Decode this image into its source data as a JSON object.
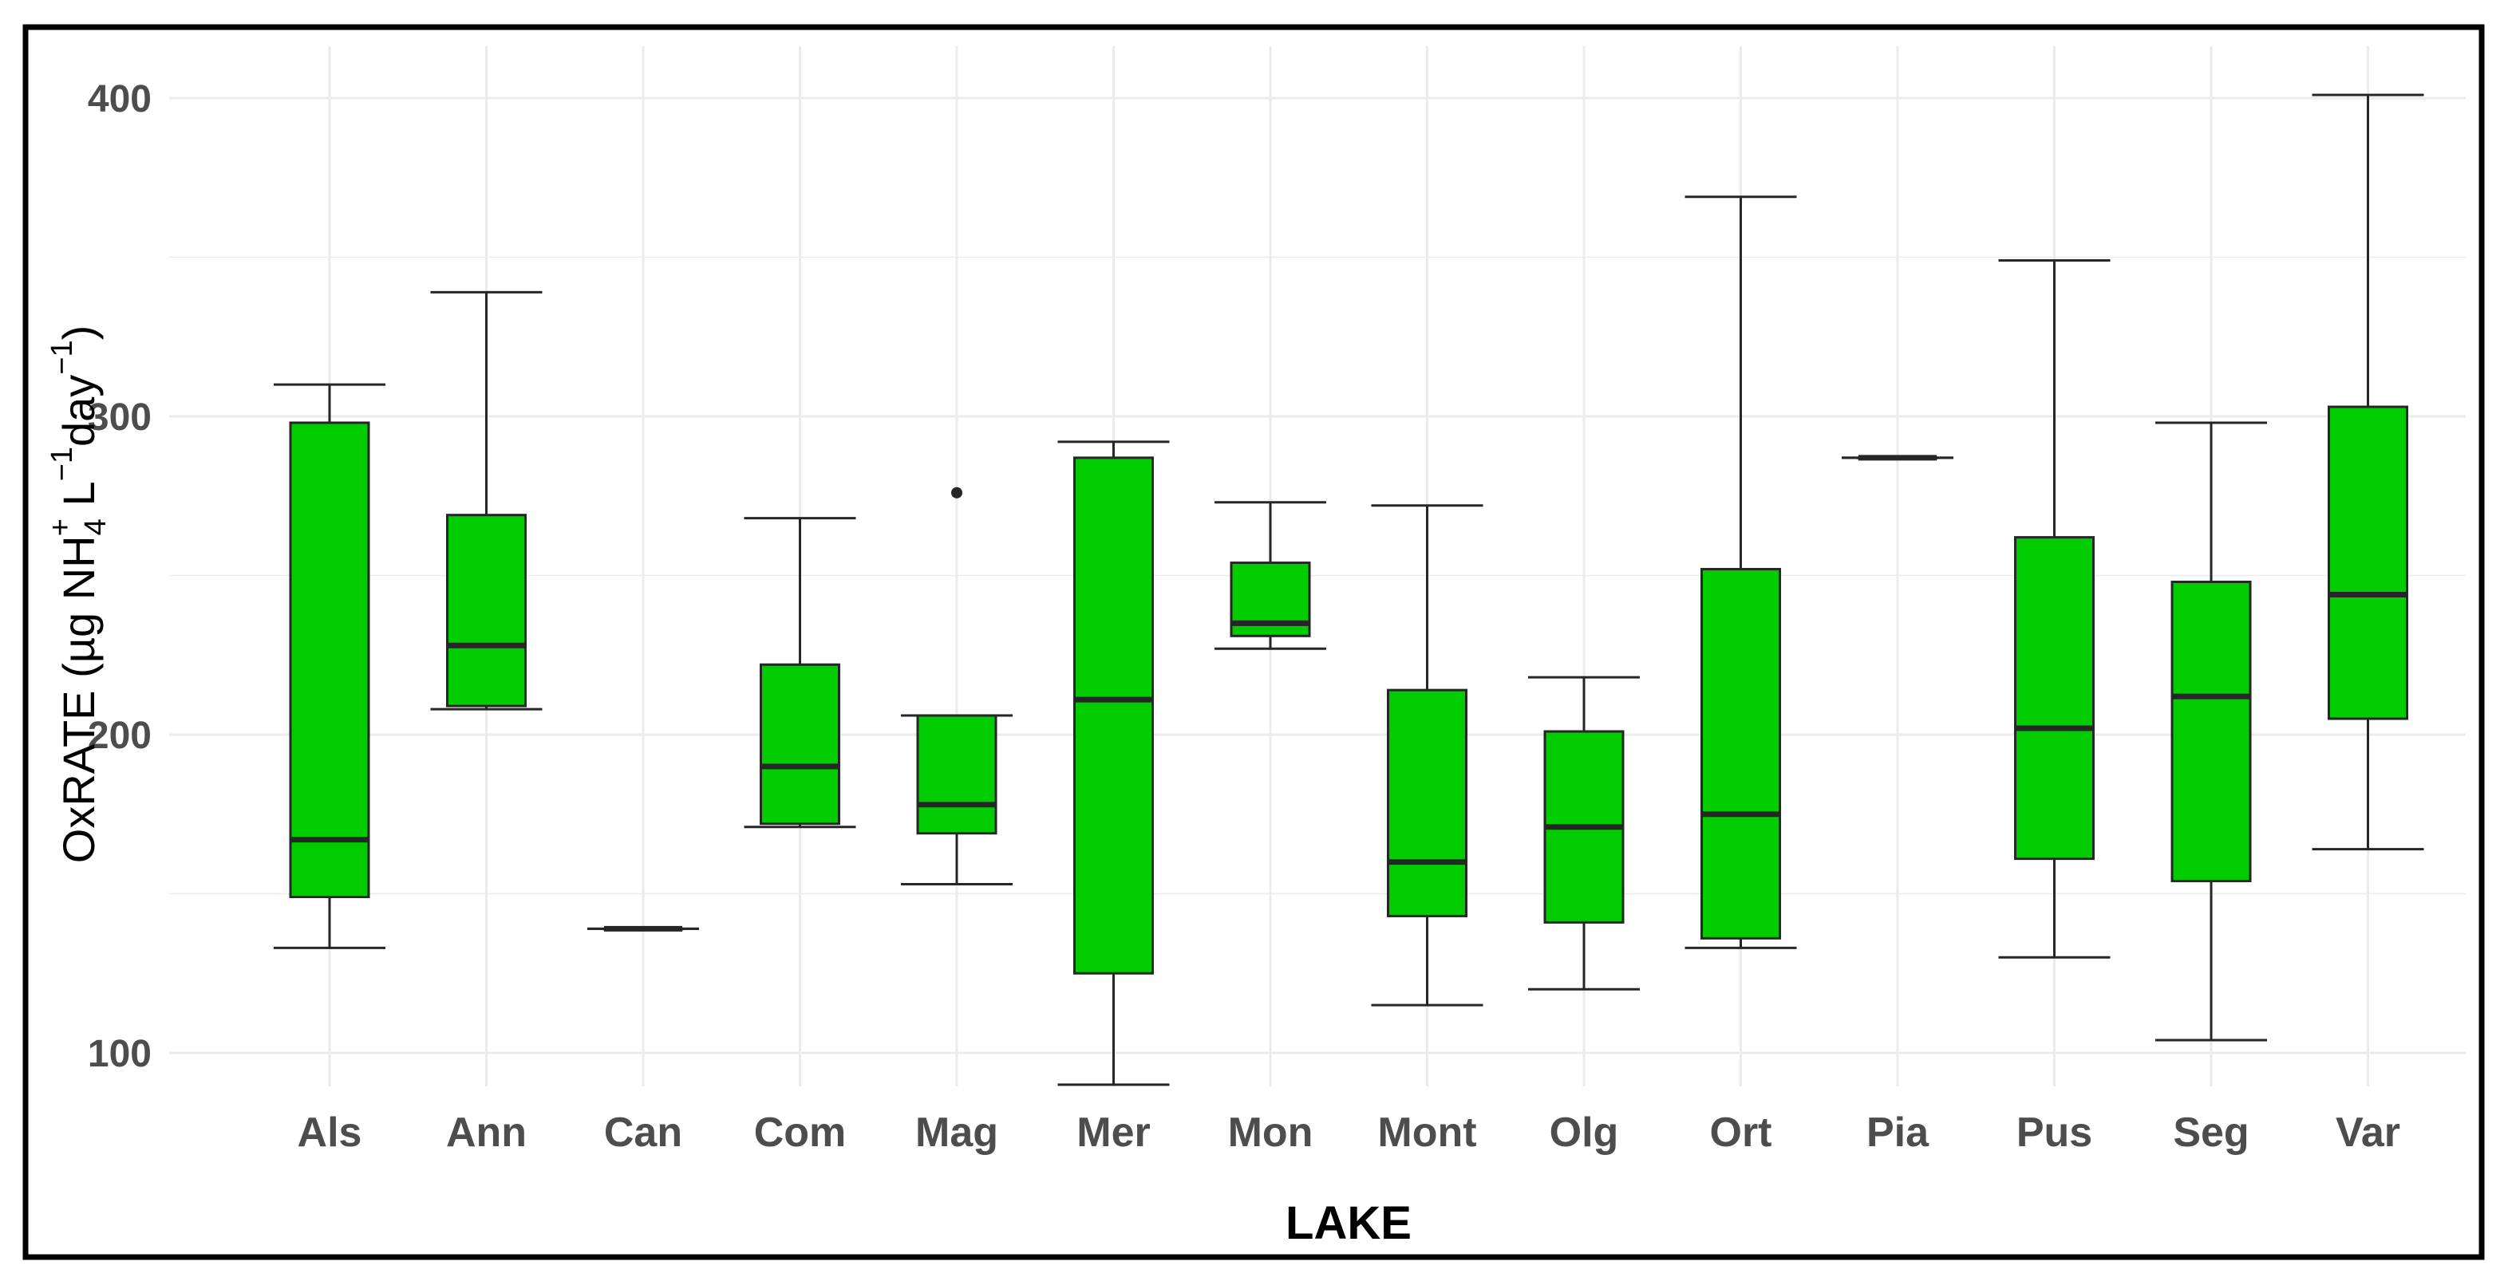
{
  "chart_data": {
    "type": "boxplot",
    "xlabel": "LAKE",
    "ylabel": {
      "prefix": "OxRATE (µg NH",
      "sub": "4",
      "sup": "+",
      "mid": " L",
      "sup2": "−1",
      "mid2": "day",
      "sup3": "−1",
      "suffix": ")"
    },
    "ylim": [
      80,
      420
    ],
    "yticks": [
      100,
      200,
      300,
      400
    ],
    "grid": true,
    "colors": {
      "box_fill": "#00cc00",
      "stroke": "#262626",
      "grid": "#ebebeb",
      "frame": "#000000"
    },
    "categories": [
      "Als",
      "Ann",
      "Can",
      "Com",
      "Mag",
      "Mer",
      "Mon",
      "Mont",
      "Olg",
      "Ort",
      "Pia",
      "Pus",
      "Seg",
      "Var"
    ],
    "boxes": [
      {
        "lake": "Als",
        "min": 133,
        "q1": 149,
        "median": 167,
        "q3": 298,
        "max": 310,
        "outliers": []
      },
      {
        "lake": "Ann",
        "min": 208,
        "q1": 209,
        "median": 228,
        "q3": 269,
        "max": 339,
        "outliers": []
      },
      {
        "lake": "Can",
        "min": 139,
        "q1": 139,
        "median": 139,
        "q3": 139,
        "max": 139,
        "outliers": []
      },
      {
        "lake": "Com",
        "min": 171,
        "q1": 172,
        "median": 190,
        "q3": 222,
        "max": 268,
        "outliers": []
      },
      {
        "lake": "Mag",
        "min": 153,
        "q1": 169,
        "median": 178,
        "q3": 206,
        "max": 206,
        "outliers": [
          276
        ]
      },
      {
        "lake": "Mer",
        "min": 90,
        "q1": 125,
        "median": 211,
        "q3": 287,
        "max": 292,
        "outliers": []
      },
      {
        "lake": "Mon",
        "min": 227,
        "q1": 231,
        "median": 235,
        "q3": 254,
        "max": 273,
        "outliers": []
      },
      {
        "lake": "Mont",
        "min": 115,
        "q1": 143,
        "median": 160,
        "q3": 214,
        "max": 272,
        "outliers": []
      },
      {
        "lake": "Olg",
        "min": 120,
        "q1": 141,
        "median": 171,
        "q3": 201,
        "max": 218,
        "outliers": []
      },
      {
        "lake": "Ort",
        "min": 133,
        "q1": 136,
        "median": 175,
        "q3": 252,
        "max": 369,
        "outliers": []
      },
      {
        "lake": "Pia",
        "min": 287,
        "q1": 287,
        "median": 287,
        "q3": 287,
        "max": 287,
        "outliers": []
      },
      {
        "lake": "Pus",
        "min": 130,
        "q1": 161,
        "median": 202,
        "q3": 262,
        "max": 349,
        "outliers": []
      },
      {
        "lake": "Seg",
        "min": 104,
        "q1": 154,
        "median": 212,
        "q3": 248,
        "max": 298,
        "outliers": []
      },
      {
        "lake": "Var",
        "min": 164,
        "q1": 205,
        "median": 244,
        "q3": 303,
        "max": 401,
        "outliers": []
      }
    ]
  }
}
